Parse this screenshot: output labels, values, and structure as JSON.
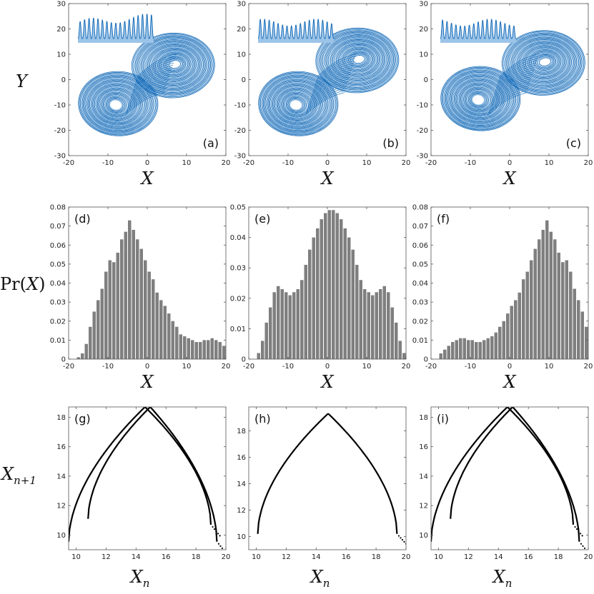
{
  "colors": {
    "attractor": "#0a64b4",
    "attractor_light": "#5aa0dc",
    "inset_fill": "#9cc4e8",
    "hist_bar": "#7f7f7f",
    "map_curve": "#000000"
  },
  "row_labels": {
    "y": "Y",
    "pr_prefix": "Pr(",
    "pr_var": "X",
    "pr_suffix": ")",
    "xn1_base": "X",
    "xn1_sub": "n+1"
  },
  "col_labels": {
    "x": "X",
    "xn_base": "X",
    "xn_sub": "n"
  },
  "chart_data": [
    {
      "type": "line",
      "panel": "(a)",
      "xlabel": "X",
      "ylabel": "Y",
      "xlim": [
        -20,
        20
      ],
      "ylim": [
        -30,
        30
      ],
      "xticks": [
        "-20",
        "-10",
        "0",
        "10",
        "20"
      ],
      "yticks": [
        "-30",
        "-20",
        "-10",
        "0",
        "10",
        "20",
        "30"
      ],
      "attractor": {
        "left_center": [
          -8,
          -10
        ],
        "right_center": [
          7,
          6
        ],
        "left_weight": 0.62
      }
    },
    {
      "type": "line",
      "panel": "(b)",
      "xlabel": "X",
      "ylabel": "",
      "xlim": [
        -20,
        20
      ],
      "ylim": [
        -30,
        30
      ],
      "xticks": [
        "-20",
        "-10",
        "0",
        "10",
        "20"
      ],
      "yticks": [
        "-30",
        "-20",
        "-10",
        "0",
        "10",
        "20",
        "30"
      ],
      "attractor": {
        "left_center": [
          -8,
          -10
        ],
        "right_center": [
          8,
          8
        ],
        "left_weight": 0.5
      }
    },
    {
      "type": "line",
      "panel": "(c)",
      "xlabel": "X",
      "ylabel": "",
      "xlim": [
        -20,
        20
      ],
      "ylim": [
        -30,
        30
      ],
      "xticks": [
        "-20",
        "-10",
        "0",
        "10",
        "20"
      ],
      "yticks": [
        "-30",
        "-20",
        "-10",
        "0",
        "10",
        "20",
        "30"
      ],
      "attractor": {
        "left_center": [
          -8,
          -8
        ],
        "right_center": [
          9,
          7
        ],
        "left_weight": 0.38
      }
    },
    {
      "type": "bar",
      "panel": "(d)",
      "xlabel": "X",
      "ylabel": "Pr(X)",
      "xlim": [
        -20,
        20
      ],
      "ylim": [
        0,
        0.08
      ],
      "xticks": [
        "-20",
        "-10",
        "0",
        "10",
        "20"
      ],
      "yticks": [
        "0",
        "0.01",
        "0.02",
        "0.03",
        "0.04",
        "0.05",
        "0.06",
        "0.07",
        "0.08"
      ],
      "bin_start": -18,
      "bin_width": 1,
      "values": [
        0.001,
        0.003,
        0.008,
        0.017,
        0.025,
        0.031,
        0.037,
        0.046,
        0.052,
        0.051,
        0.056,
        0.063,
        0.067,
        0.073,
        0.068,
        0.063,
        0.058,
        0.052,
        0.046,
        0.042,
        0.035,
        0.031,
        0.028,
        0.024,
        0.02,
        0.017,
        0.013,
        0.012,
        0.011,
        0.01,
        0.009,
        0.009,
        0.01,
        0.01,
        0.011,
        0.01,
        0.009,
        0.007,
        0.005,
        0.003
      ]
    },
    {
      "type": "bar",
      "panel": "(e)",
      "xlabel": "X",
      "ylabel": "",
      "xlim": [
        -20,
        20
      ],
      "ylim": [
        0,
        0.05
      ],
      "xticks": [
        "-20",
        "-10",
        "0",
        "10",
        "20"
      ],
      "yticks": [
        "0",
        "0.01",
        "0.02",
        "0.03",
        "0.04",
        "0.05"
      ],
      "bin_start": -18,
      "bin_width": 1,
      "values": [
        0.002,
        0.006,
        0.012,
        0.017,
        0.022,
        0.024,
        0.023,
        0.022,
        0.021,
        0.022,
        0.023,
        0.026,
        0.031,
        0.036,
        0.04,
        0.043,
        0.046,
        0.048,
        0.049,
        0.049,
        0.048,
        0.046,
        0.043,
        0.04,
        0.036,
        0.031,
        0.026,
        0.023,
        0.022,
        0.021,
        0.022,
        0.023,
        0.024,
        0.022,
        0.017,
        0.012,
        0.006,
        0.002
      ]
    },
    {
      "type": "bar",
      "panel": "(f)",
      "xlabel": "X",
      "ylabel": "",
      "xlim": [
        -20,
        20
      ],
      "ylim": [
        0,
        0.08
      ],
      "xticks": [
        "-20",
        "-10",
        "0",
        "10",
        "20"
      ],
      "yticks": [
        "0",
        "0.01",
        "0.02",
        "0.03",
        "0.04",
        "0.05",
        "0.06",
        "0.07",
        "0.08"
      ],
      "bin_start": -18,
      "bin_width": 1,
      "values": [
        0.003,
        0.005,
        0.007,
        0.009,
        0.01,
        0.011,
        0.011,
        0.01,
        0.01,
        0.009,
        0.009,
        0.01,
        0.011,
        0.012,
        0.014,
        0.017,
        0.02,
        0.024,
        0.028,
        0.031,
        0.035,
        0.042,
        0.046,
        0.052,
        0.058,
        0.063,
        0.068,
        0.073,
        0.067,
        0.063,
        0.056,
        0.051,
        0.052,
        0.046,
        0.037,
        0.031,
        0.025,
        0.017,
        0.008,
        0.003
      ]
    },
    {
      "type": "line",
      "panel": "(g)",
      "xlabel": "X_n",
      "ylabel": "X_{n+1}",
      "xlim": [
        9.5,
        20
      ],
      "ylim": [
        9,
        18.7
      ],
      "xticks": [
        "10",
        "12",
        "14",
        "16",
        "18",
        "20"
      ],
      "yticks": [
        "10",
        "12",
        "14",
        "16",
        "18"
      ],
      "branches": [
        {
          "peak_x": 14.6,
          "peak_y": 18.7,
          "left_end": [
            9.5,
            9.55
          ],
          "right_end": [
            19.0,
            10.7
          ]
        },
        {
          "peak_x": 14.95,
          "peak_y": 18.7,
          "left_end": [
            10.8,
            11.1
          ],
          "right_end": [
            19.4,
            9.55
          ]
        }
      ]
    },
    {
      "type": "line",
      "panel": "(h)",
      "xlabel": "X_n",
      "ylabel": "",
      "xlim": [
        9.5,
        20
      ],
      "ylim": [
        9,
        19.8
      ],
      "xticks": [
        "10",
        "12",
        "14",
        "16",
        "18",
        "20"
      ],
      "yticks": [
        "10",
        "12",
        "14",
        "16",
        "18"
      ],
      "branches": [
        {
          "peak_x": 14.8,
          "peak_y": 19.3,
          "left_end": [
            10.1,
            10.2
          ],
          "right_end": [
            19.4,
            10.2
          ]
        }
      ]
    },
    {
      "type": "line",
      "panel": "(i)",
      "xlabel": "X_n",
      "ylabel": "",
      "xlim": [
        9.5,
        20
      ],
      "ylim": [
        9,
        18.7
      ],
      "xticks": [
        "10",
        "12",
        "14",
        "16",
        "18",
        "20"
      ],
      "yticks": [
        "10",
        "12",
        "14",
        "16",
        "18"
      ],
      "branches": [
        {
          "peak_x": 14.6,
          "peak_y": 18.7,
          "left_end": [
            9.5,
            9.55
          ],
          "right_end": [
            19.0,
            10.7
          ]
        },
        {
          "peak_x": 14.95,
          "peak_y": 18.7,
          "left_end": [
            10.8,
            11.1
          ],
          "right_end": [
            19.4,
            9.55
          ]
        }
      ]
    }
  ]
}
